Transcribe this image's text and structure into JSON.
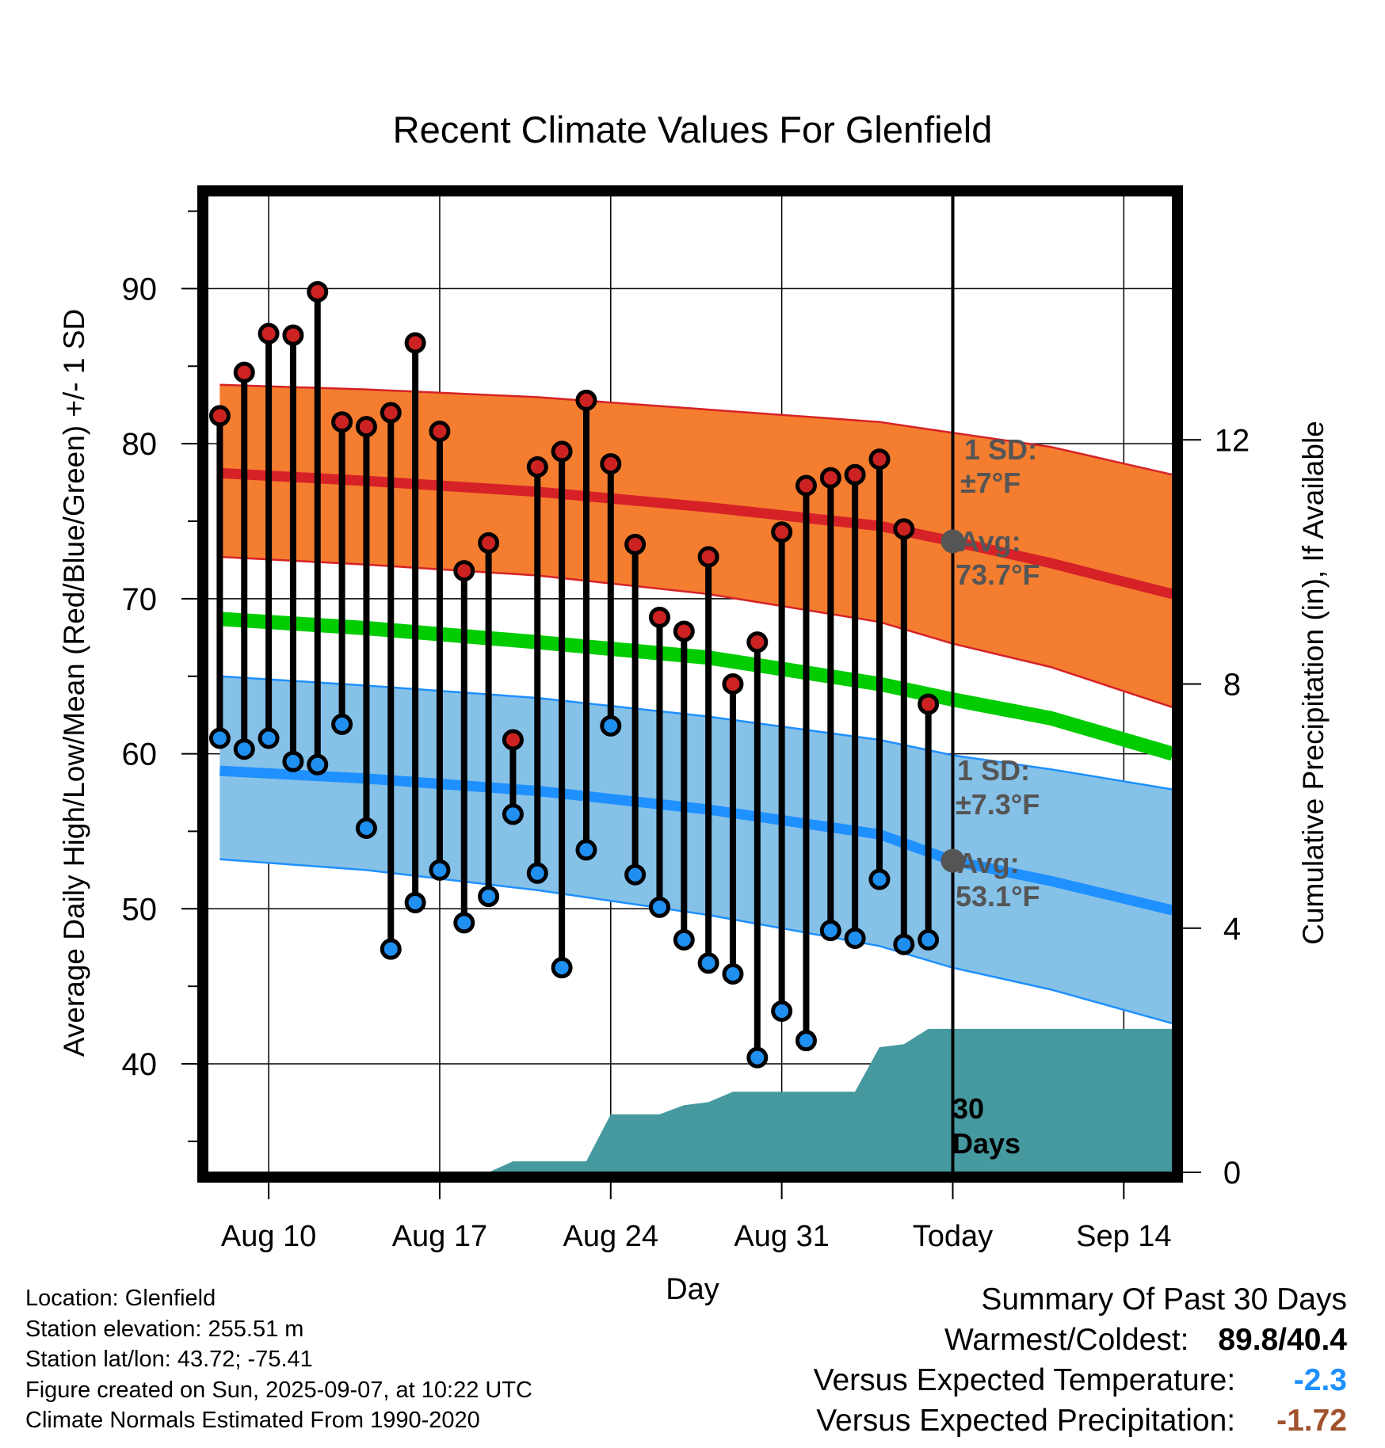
{
  "chart_data": {
    "type": "line",
    "title": "Recent Climate Values For Glenfield",
    "xlabel": "Day",
    "ylabel": "Average Daily High/Low/Mean (Red/Blue/Green) +/- 1 SD",
    "y2label": "Cumulative Precipitation (in), If Available",
    "xlim": [
      "Aug 8",
      "Sep 16"
    ],
    "ylim": [
      33,
      96
    ],
    "y2lim": [
      0,
      16
    ],
    "x_ticks": [
      {
        "date": "Aug 10",
        "label": "Aug 10"
      },
      {
        "date": "Aug 17",
        "label": "Aug 17"
      },
      {
        "date": "Aug 24",
        "label": "Aug 24"
      },
      {
        "date": "Aug 31",
        "label": "Aug 31"
      },
      {
        "date": "Sep 7",
        "label": "Today"
      },
      {
        "date": "Sep 14",
        "label": "Sep 14"
      }
    ],
    "y_ticks": [
      40,
      50,
      60,
      70,
      80,
      90
    ],
    "y2_ticks": [
      0,
      4,
      8,
      12
    ],
    "grid": true,
    "today_date": "Sep 7",
    "colors": {
      "high_band": "#f47d30",
      "high_line": "#d62227",
      "high_dot": "#cc2222",
      "low_band": "#86c1e8",
      "low_line": "#1f90ff",
      "low_dot": "#1f8ff0",
      "mean_line": "#00cc00",
      "precip": "#46999f",
      "avg_marker": "#555555",
      "precip_anomaly": "#a0522d"
    },
    "normals": {
      "x": [
        "Aug 8",
        "Aug 14",
        "Aug 21",
        "Aug 28",
        "Sep 4",
        "Sep 7",
        "Sep 11",
        "Sep 16"
      ],
      "high_mean": [
        78.1,
        77.6,
        76.9,
        75.9,
        74.7,
        73.7,
        72.3,
        70.3
      ],
      "high_upper": [
        83.8,
        83.5,
        83.0,
        82.2,
        81.4,
        80.7,
        79.8,
        78.0
      ],
      "high_lower": [
        72.7,
        72.2,
        71.5,
        70.3,
        68.5,
        67.1,
        65.6,
        63.0
      ],
      "mean": [
        68.7,
        68.1,
        67.2,
        66.2,
        64.5,
        63.5,
        62.3,
        60.0
      ],
      "low_mean": [
        58.9,
        58.4,
        57.6,
        56.4,
        54.8,
        53.1,
        51.8,
        49.9
      ],
      "low_upper": [
        65.0,
        64.4,
        63.6,
        62.4,
        60.9,
        59.9,
        59.0,
        57.7
      ],
      "low_lower": [
        53.2,
        52.5,
        51.2,
        49.6,
        47.6,
        46.2,
        44.8,
        42.6
      ]
    },
    "series": [
      {
        "name": "High",
        "x": [
          "Aug 8",
          "Aug 9",
          "Aug 10",
          "Aug 11",
          "Aug 12",
          "Aug 13",
          "Aug 14",
          "Aug 15",
          "Aug 16",
          "Aug 17",
          "Aug 18",
          "Aug 19",
          "Aug 20",
          "Aug 21",
          "Aug 22",
          "Aug 23",
          "Aug 24",
          "Aug 25",
          "Aug 26",
          "Aug 27",
          "Aug 28",
          "Aug 29",
          "Aug 30",
          "Aug 31",
          "Sep 1",
          "Sep 2",
          "Sep 3",
          "Sep 4",
          "Sep 5",
          "Sep 6"
        ],
        "values": [
          81.8,
          84.6,
          87.1,
          87.0,
          89.8,
          81.4,
          81.1,
          82.0,
          86.5,
          80.8,
          71.8,
          73.6,
          60.9,
          78.5,
          79.5,
          82.8,
          78.7,
          73.5,
          68.8,
          67.9,
          72.7,
          64.5,
          67.2,
          74.3,
          77.3,
          77.8,
          78.0,
          79.0,
          74.5,
          63.2
        ]
      },
      {
        "name": "Low",
        "x": [
          "Aug 8",
          "Aug 9",
          "Aug 10",
          "Aug 11",
          "Aug 12",
          "Aug 13",
          "Aug 14",
          "Aug 15",
          "Aug 16",
          "Aug 17",
          "Aug 18",
          "Aug 19",
          "Aug 20",
          "Aug 21",
          "Aug 22",
          "Aug 23",
          "Aug 24",
          "Aug 25",
          "Aug 26",
          "Aug 27",
          "Aug 28",
          "Aug 29",
          "Aug 30",
          "Aug 31",
          "Sep 1",
          "Sep 2",
          "Sep 3",
          "Sep 4",
          "Sep 5",
          "Sep 6"
        ],
        "values": [
          61.0,
          60.3,
          61.0,
          59.5,
          59.3,
          61.9,
          55.2,
          47.4,
          50.4,
          52.5,
          49.1,
          50.8,
          56.1,
          52.3,
          46.2,
          53.8,
          61.8,
          52.2,
          50.1,
          48.0,
          46.5,
          45.8,
          40.4,
          43.4,
          41.5,
          48.6,
          48.1,
          51.9,
          47.7,
          48.0
        ]
      },
      {
        "name": "Cumulative Precipitation",
        "x": [
          "Aug 8",
          "Aug 19",
          "Aug 20",
          "Aug 23",
          "Aug 24",
          "Aug 26",
          "Aug 27",
          "Aug 28",
          "Aug 29",
          "Sep 3",
          "Sep 4",
          "Sep 5",
          "Sep 6",
          "Sep 16"
        ],
        "values": [
          0.0,
          0.0,
          0.18,
          0.18,
          0.95,
          0.95,
          1.1,
          1.15,
          1.32,
          1.32,
          2.05,
          2.1,
          2.35,
          2.35
        ]
      }
    ],
    "annotations": {
      "high_sd_heading": "1 SD:",
      "high_sd_value": "±7°F",
      "high_avg_heading": "Avg:",
      "high_avg_value": "73.7°F",
      "low_sd_heading": "1 SD:",
      "low_sd_value": "±7.3°F",
      "low_avg_heading": "Avg:",
      "low_avg_value": "53.1°F",
      "precip_days_1": "30",
      "precip_days_2": "Days"
    }
  },
  "info": {
    "location": "Location: Glenfield",
    "elevation": "Station elevation: 255.51 m",
    "latlon": "Station lat/lon: 43.72; -75.41",
    "created": "Figure created on Sun, 2025-09-07, at 10:22 UTC",
    "normals": "Climate Normals Estimated From 1990-2020"
  },
  "summary": {
    "title": "Summary Of Past 30 Days",
    "warm_label": "Warmest/Coldest:",
    "warm_value_high": "89.8",
    "warm_value_sep": "/",
    "warm_value_low": "40.4",
    "temp_label": "Versus Expected Temperature:",
    "temp_value": "-2.3",
    "precip_label": "Versus Expected Precipitation:",
    "precip_value": "-1.72"
  }
}
